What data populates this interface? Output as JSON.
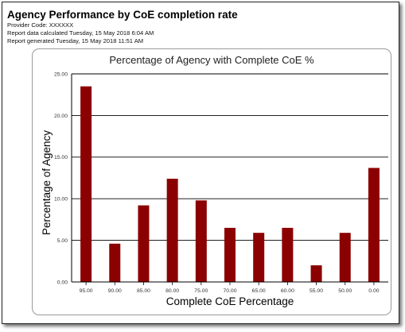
{
  "report": {
    "title": "Agency Performance by CoE completion rate",
    "provider_line": "Provider Code: XXXXXX",
    "calculated_line": "Report data calculated Tuesday, 15 May 2018 6:04 AM",
    "generated_line": "Report generated Tuesday, 15 May 2018 11:51 AM"
  },
  "chart_data": {
    "type": "bar",
    "title": "Percentage of Agency with Complete CoE %",
    "xlabel": "Complete CoE Percentage",
    "ylabel": "Percentage of Agency",
    "categories": [
      "95.00",
      "90.00",
      "85.00",
      "80.00",
      "75.00",
      "70.00",
      "65.00",
      "60.00",
      "55.00",
      "50.00",
      "0.00"
    ],
    "values": [
      23.5,
      4.6,
      9.2,
      12.4,
      9.8,
      6.5,
      5.9,
      6.5,
      2.0,
      5.9,
      13.7
    ],
    "yticks": [
      "0.00",
      "5.00",
      "10.00",
      "15.00",
      "20.00",
      "25.00"
    ],
    "ylim": [
      0,
      25
    ],
    "grid": true,
    "bar_color": "#8b0000"
  }
}
